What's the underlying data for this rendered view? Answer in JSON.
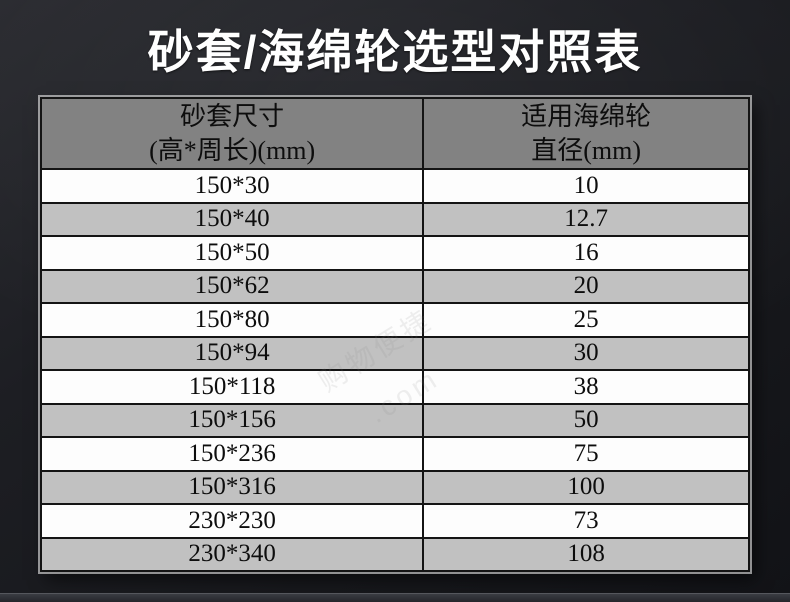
{
  "page": {
    "title": "砂套/海绵轮选型对照表"
  },
  "chart_data": {
    "type": "table",
    "title": "砂套/海绵轮选型对照表",
    "columns": [
      {
        "line1": "砂套尺寸",
        "line2": "(高*周长)(mm)"
      },
      {
        "line1": "适用海绵轮",
        "line2": "直径(mm)"
      }
    ],
    "rows": [
      [
        "150*30",
        "10"
      ],
      [
        "150*40",
        "12.7"
      ],
      [
        "150*50",
        "16"
      ],
      [
        "150*62",
        "20"
      ],
      [
        "150*80",
        "25"
      ],
      [
        "150*94",
        "30"
      ],
      [
        "150*118",
        "38"
      ],
      [
        "150*156",
        "50"
      ],
      [
        "150*236",
        "75"
      ],
      [
        "150*316",
        "100"
      ],
      [
        "230*230",
        "73"
      ],
      [
        "230*340",
        "108"
      ]
    ]
  },
  "watermark": {
    "line1": "购物便捷",
    "line2": ".com"
  },
  "colors": {
    "background": "#1b1c21",
    "title_color": "#ffffff",
    "header_bg": "#828282",
    "row_bg": "#fdfdfd",
    "row_alt_bg": "#c1c1c1",
    "border_color": "#141414",
    "text_color": "#0d0d0d"
  }
}
